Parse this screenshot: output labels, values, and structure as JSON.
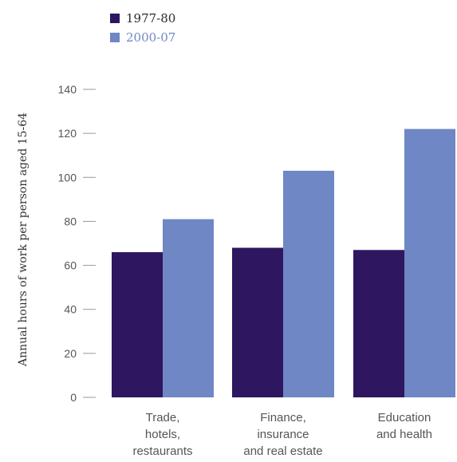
{
  "chart_data": {
    "type": "bar",
    "title": "",
    "xlabel": "",
    "ylabel": "Annual hours of work per person aged 15-64",
    "ylim": [
      0,
      140
    ],
    "yticks": [
      0,
      20,
      40,
      60,
      80,
      100,
      120,
      140
    ],
    "grid": false,
    "legend_position": "top-left",
    "categories": [
      [
        "Trade,",
        "hotels,",
        "restaurants"
      ],
      [
        "Finance,",
        "insurance",
        "and real estate"
      ],
      [
        "Education",
        "and health"
      ]
    ],
    "series": [
      {
        "name": "1977-80",
        "color": "#2e1760",
        "values": [
          66,
          68,
          67
        ]
      },
      {
        "name": "2000-07",
        "color": "#6f87c4",
        "values": [
          81,
          103,
          122
        ]
      }
    ]
  }
}
